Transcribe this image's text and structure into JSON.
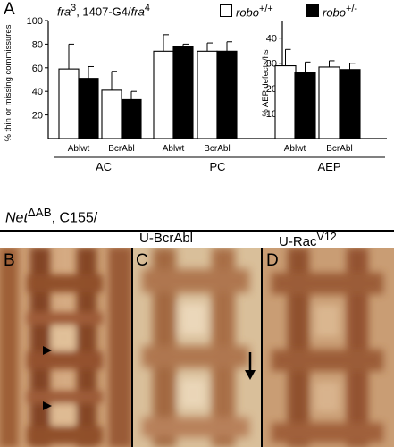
{
  "panel_A": {
    "letter": "A",
    "genotype_html": "<i>fra</i><sup>3</sup>, 1407-G4/<i>fra</i><sup>4</sup>",
    "legend": [
      {
        "label_html": "<i>robo</i><sup>+/+</sup>",
        "color": "#ffffff"
      },
      {
        "label_html": "<i>robo</i><sup>+/-</sup>",
        "color": "#000000"
      }
    ]
  },
  "chart_data": [
    {
      "type": "bar",
      "ylabel": "% thin or missing commissures",
      "ylim": [
        0,
        100
      ],
      "yticks": [
        20,
        40,
        60,
        80,
        100
      ],
      "groups": [
        "AC",
        "PC"
      ],
      "categories": [
        "Ablwt",
        "BcrAbl",
        "Ablwt",
        "BcrAbl"
      ],
      "series": [
        {
          "name": "robo+/+",
          "color": "#ffffff",
          "values": [
            59,
            41,
            74,
            74
          ],
          "errors": [
            21,
            16,
            14,
            7
          ]
        },
        {
          "name": "robo+/-",
          "color": "#000000",
          "values": [
            51,
            33,
            78,
            74
          ],
          "errors": [
            10,
            7,
            2,
            8
          ]
        }
      ]
    },
    {
      "type": "bar",
      "ylabel": "% AEP defects/hs",
      "ylim": [
        0,
        47
      ],
      "yticks": [
        10,
        20,
        30,
        40
      ],
      "groups": [
        "AEP"
      ],
      "categories": [
        "Ablwt",
        "BcrAbl"
      ],
      "series": [
        {
          "name": "robo+/+",
          "color": "#ffffff",
          "values": [
            29,
            28.5
          ],
          "errors": [
            6.5,
            2.5
          ]
        },
        {
          "name": "robo+/-",
          "color": "#000000",
          "values": [
            26.5,
            27.5
          ],
          "errors": [
            4,
            2.5
          ]
        }
      ]
    }
  ],
  "panel_lower": {
    "genotype_html": "<i>Net</i><sup>ΔAB</sup>, C155/",
    "panels": [
      {
        "letter": "B",
        "label_html": ""
      },
      {
        "letter": "C",
        "label_html": "U-BcrAbl"
      },
      {
        "letter": "D",
        "label_html": "U-Rac<sup>V12</sup>"
      }
    ]
  }
}
